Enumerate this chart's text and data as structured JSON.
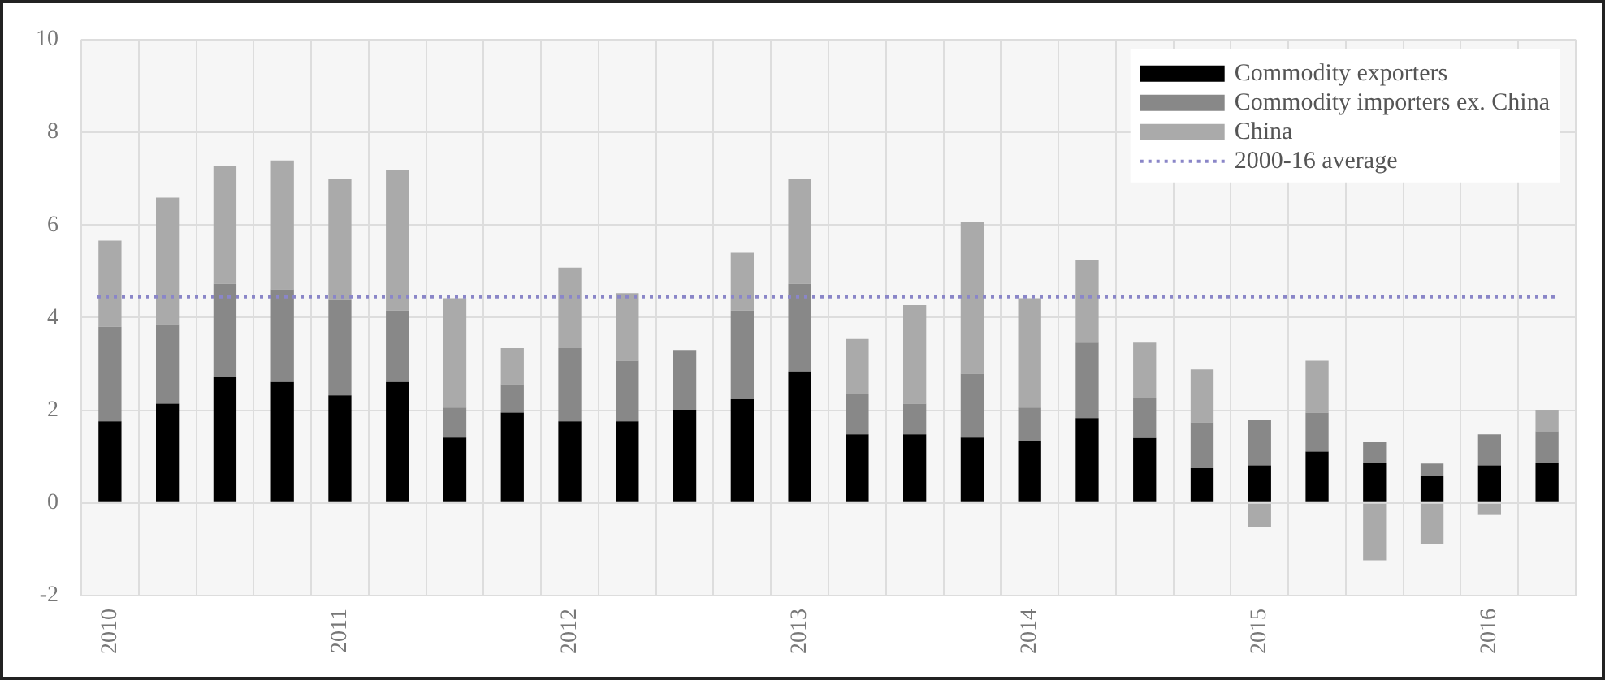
{
  "chart_data": {
    "type": "bar",
    "stacked": true,
    "categories": [
      "2010",
      null,
      null,
      null,
      "2011",
      null,
      null,
      null,
      "2012",
      null,
      null,
      null,
      "2013",
      null,
      null,
      null,
      "2014",
      null,
      null,
      null,
      "2015",
      null,
      null,
      null,
      "2016",
      null
    ],
    "series": [
      {
        "name": "Commodity exporters",
        "color": "#000000",
        "values": [
          1.76,
          2.14,
          2.72,
          2.61,
          2.32,
          2.61,
          1.41,
          1.95,
          1.76,
          1.76,
          2.01,
          2.24,
          2.84,
          1.48,
          1.48,
          1.41,
          1.34,
          1.83,
          1.4,
          0.75,
          0.81,
          1.11,
          0.87,
          0.58,
          0.81,
          0.87
        ]
      },
      {
        "name": "Commodity importers ex. China",
        "color": "#888888",
        "values": [
          2.04,
          1.72,
          2.01,
          2.0,
          2.06,
          1.54,
          0.65,
          0.61,
          1.58,
          1.31,
          1.29,
          1.91,
          1.89,
          0.87,
          0.66,
          1.38,
          0.72,
          1.63,
          0.87,
          0.99,
          0.99,
          0.84,
          0.44,
          0.27,
          0.67,
          0.67
        ]
      },
      {
        "name": "China",
        "color": "#aaaaaa",
        "values": [
          1.86,
          2.73,
          2.54,
          2.78,
          2.61,
          3.04,
          2.36,
          0.78,
          1.74,
          1.46,
          0,
          1.25,
          2.26,
          1.19,
          2.13,
          3.27,
          2.36,
          1.79,
          1.19,
          1.14,
          -0.52,
          1.12,
          -1.24,
          -0.89,
          -0.26,
          0.47
        ]
      }
    ],
    "ref_lines": [
      {
        "axis": "y",
        "value": 4.45,
        "label": "2000-16 average",
        "color": "#8a86c8",
        "line_style": "dotted"
      }
    ],
    "ylim": [
      -2,
      10
    ],
    "yticks": [
      -2,
      0,
      2,
      4,
      6,
      8,
      10
    ],
    "grid": true,
    "legend": "top right"
  }
}
